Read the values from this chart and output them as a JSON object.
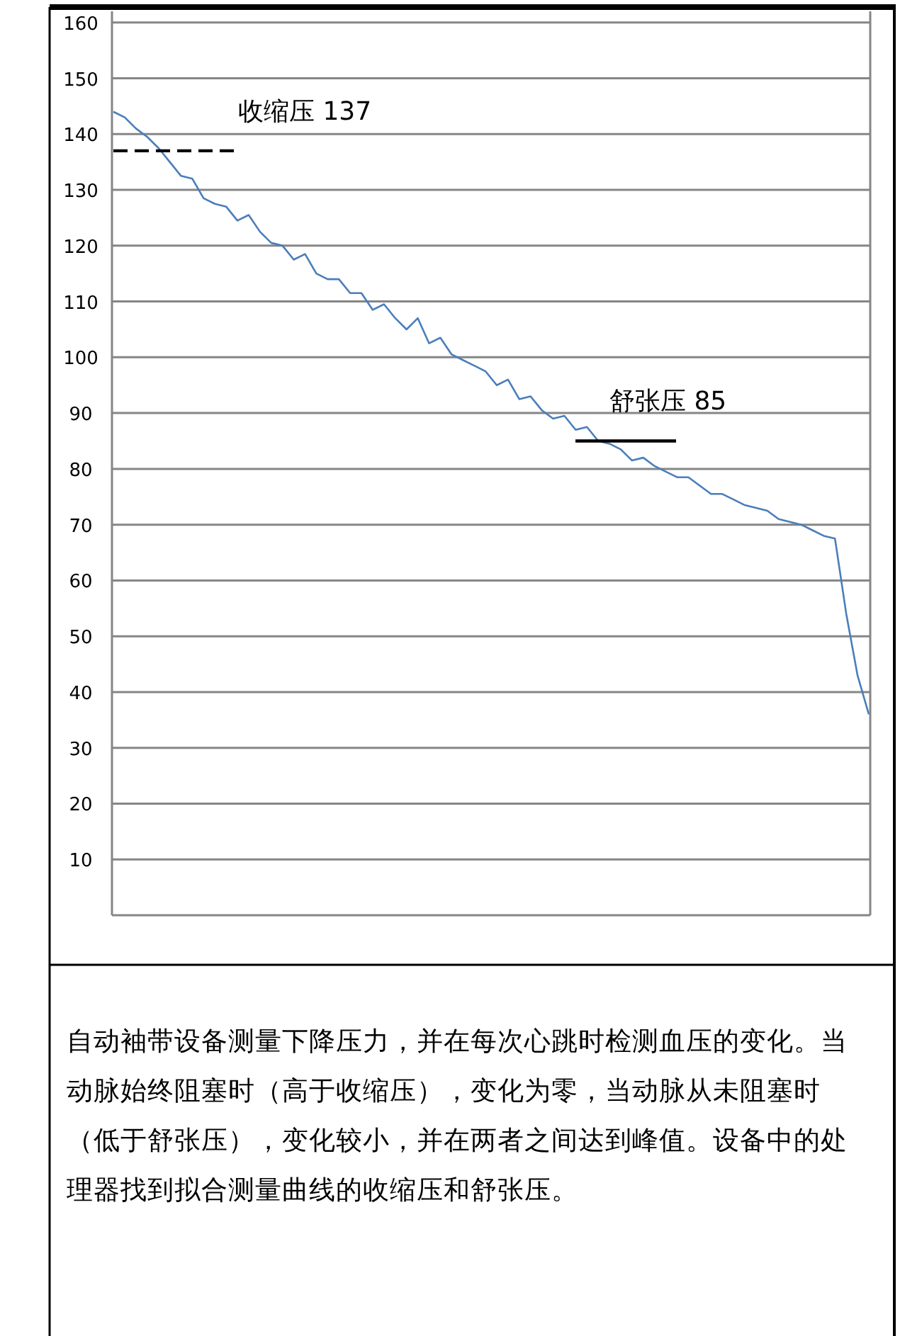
{
  "chart_data": {
    "type": "line",
    "categories": [
      null,
      null,
      null,
      null,
      null,
      null,
      null,
      null,
      null,
      null,
      null,
      null,
      null,
      null,
      null,
      null,
      null,
      null,
      null,
      null,
      null,
      null,
      null,
      null,
      null,
      null,
      null,
      null,
      null,
      null,
      null,
      null,
      null,
      null,
      null,
      null,
      null,
      null,
      null,
      null,
      null,
      null,
      null,
      null,
      null,
      null,
      null,
      null,
      null,
      null,
      null,
      null,
      null,
      null,
      null,
      null,
      null,
      null,
      null,
      null,
      null,
      null,
      null,
      null,
      null,
      null,
      null,
      null
    ],
    "values": [
      144,
      143,
      141,
      139.5,
      137.5,
      135,
      132.5,
      132,
      128.5,
      127.5,
      127,
      124.5,
      125.5,
      122.5,
      120.5,
      120,
      117.5,
      118.5,
      115,
      114,
      114,
      111.5,
      111.5,
      108.5,
      109.5,
      107,
      105,
      107,
      102.5,
      103.5,
      100.5,
      99.5,
      98.5,
      97.5,
      95,
      96,
      92.5,
      93,
      90.5,
      89,
      89.5,
      87,
      87.5,
      85,
      84.5,
      83.5,
      81.5,
      82,
      80.5,
      79.5,
      78.5,
      78.5,
      77,
      75.5,
      75.5,
      74.5,
      73.5,
      73,
      72.5,
      71,
      70.5,
      70,
      69,
      68,
      67.5,
      54,
      43,
      36
    ],
    "color": "#4a7ebb",
    "ylim": [
      0,
      162
    ],
    "yticks": [
      10,
      20,
      30,
      40,
      50,
      60,
      70,
      80,
      90,
      100,
      110,
      120,
      130,
      140,
      150,
      160
    ],
    "grid": "y",
    "tick_labels": "y",
    "ref_lines": [
      {
        "axis": "y",
        "value": 137,
        "label": "收缩压 137",
        "line_style": "dashed",
        "color": "#000000"
      },
      {
        "axis": "y",
        "value": 85,
        "label": "舒张压 85",
        "line_style": "solid",
        "color": "#000000"
      }
    ],
    "annotations": [
      "自动袖带设备测量下降压力，并在每次心跳时检测血压的变化。当动脉始终阻塞时（高于收缩压），变化为零，当动脉从未阻塞时（低于舒张压），变化较小，并在两者之间达到峰值。设备中的处理器找到拟合测量曲线的收缩压和舒张压。"
    ]
  }
}
